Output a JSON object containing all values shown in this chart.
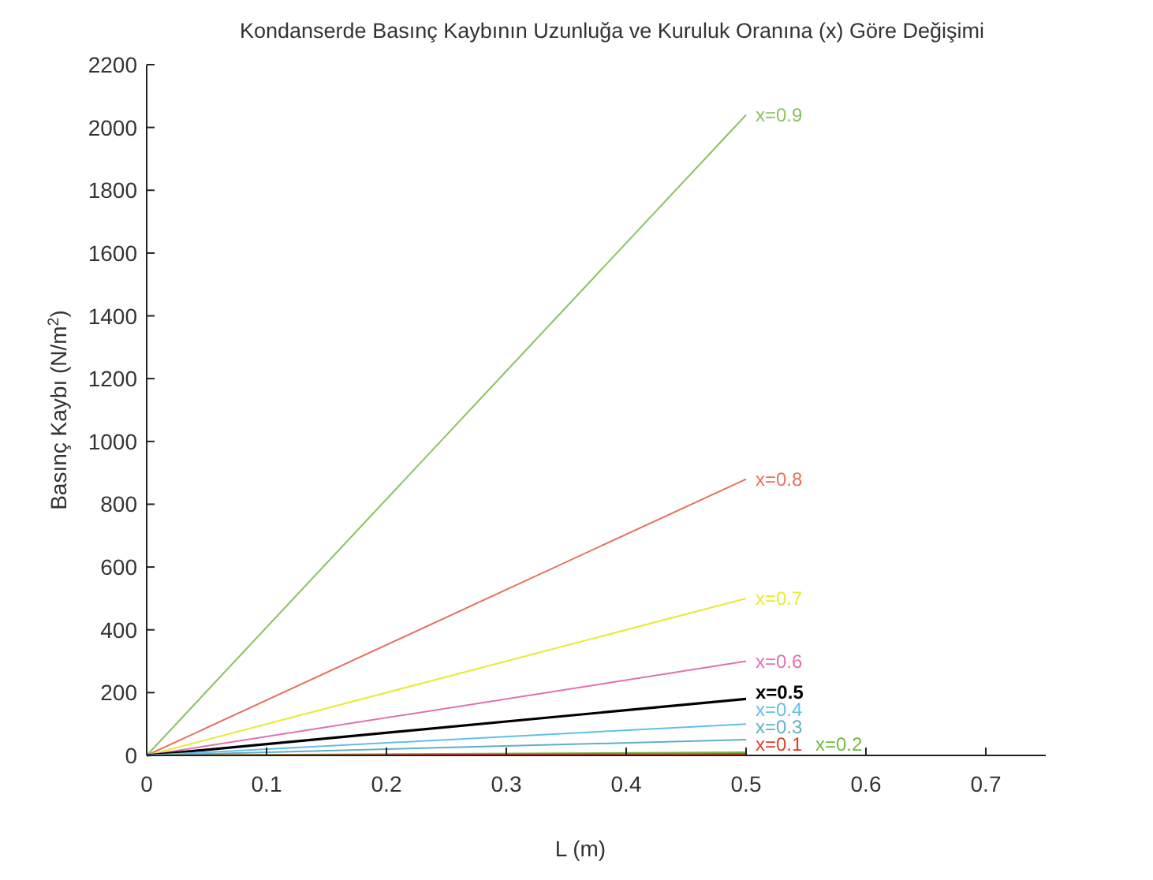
{
  "chart_data": {
    "type": "line",
    "title": "Kondanserde Basınç Kaybının Uzunluğa ve Kuruluk Oranına (x) Göre Değişimi",
    "xlabel": "L (m)",
    "ylabel": "Basınç Kaybı (N/m$^{2}$)",
    "x": [
      0,
      0.5
    ],
    "xlim": [
      0,
      0.75
    ],
    "xticks": [
      0,
      0.1,
      0.2,
      0.3,
      0.4,
      0.5,
      0.6,
      0.7
    ],
    "ylim": [
      0,
      2200
    ],
    "yticks": [
      0,
      200,
      400,
      600,
      800,
      1000,
      1200,
      1400,
      1600,
      1800,
      2000,
      2200
    ],
    "grid": false,
    "marker": "none",
    "line_style": "solid",
    "series": [
      {
        "name": "x=0.9",
        "color": "#8cc060",
        "values": [
          0,
          2040
        ]
      },
      {
        "name": "x=0.8",
        "color": "#e8705c",
        "values": [
          0,
          880
        ]
      },
      {
        "name": "x=0.7",
        "color": "#eaea30",
        "values": [
          0,
          500
        ]
      },
      {
        "name": "x=0.6",
        "color": "#e070b0",
        "values": [
          0,
          300
        ]
      },
      {
        "name": "x=0.5",
        "color": "#000000",
        "values": [
          0,
          180
        ]
      },
      {
        "name": "x=0.4",
        "color": "#60c0e8",
        "values": [
          0,
          100
        ]
      },
      {
        "name": "x=0.3",
        "color": "#60b0c8",
        "values": [
          0,
          50
        ]
      },
      {
        "name": "x=0.2",
        "color": "#70b840",
        "values": [
          0,
          10
        ]
      },
      {
        "name": "x=0.1",
        "color": "#e03c28",
        "values": [
          0,
          5
        ]
      }
    ]
  }
}
